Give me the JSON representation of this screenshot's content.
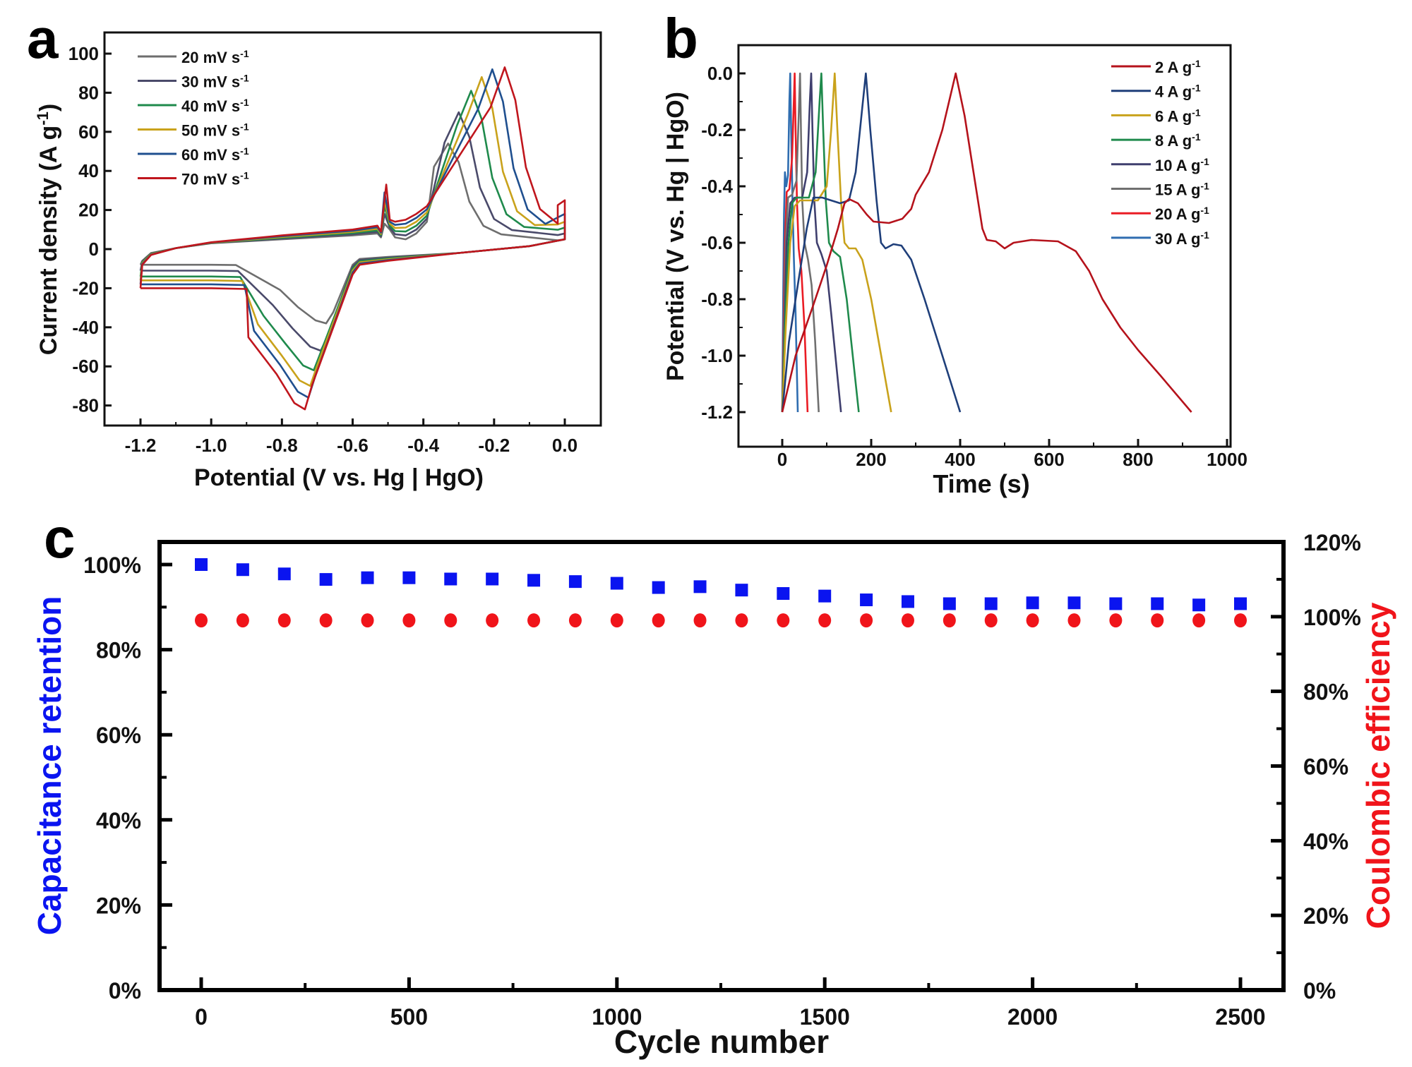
{
  "figure": {
    "panels": [
      "a",
      "b",
      "c"
    ]
  },
  "chart_data": [
    {
      "id": "a",
      "type": "line",
      "panel_label": "a",
      "title": "",
      "xlabel": "Potential (V vs. Hg | HgO)",
      "ylabel": "Current density (A g-1)",
      "ylabel_parts": {
        "main": "Current density (A g",
        "sup": "-1",
        "end": ")"
      },
      "xlim": [
        -1.3,
        0.1
      ],
      "ylim": [
        -90,
        110
      ],
      "xticks": [
        -1.2,
        -1.0,
        -0.8,
        -0.6,
        -0.4,
        -0.2,
        0.0
      ],
      "xtick_labels": [
        "-1.2",
        "-1.0",
        "-0.8",
        "-0.6",
        "-0.4",
        "-0.2",
        "0.0"
      ],
      "yticks": [
        -80,
        -60,
        -40,
        -20,
        0,
        20,
        40,
        60,
        80,
        100
      ],
      "ytick_labels": [
        "-80",
        "-60",
        "-40",
        "-20",
        "0",
        "20",
        "40",
        "60",
        "80",
        "100"
      ],
      "grid": false,
      "legend_position": "top-left",
      "series": [
        {
          "name": "20 mV s-1",
          "label": "20 mV s",
          "sup": "-1",
          "color": "#6e6e6e",
          "anodic_peak": [
            -0.33,
            54
          ],
          "cathodic_peak": [
            -0.675,
            -38
          ],
          "side_peak": [
            -0.51,
            13
          ],
          "upper_end": 5,
          "lower_start": -8,
          "plateau_neg": -8
        },
        {
          "name": "30 mV s-1",
          "label": "30 mV s",
          "sup": "-1",
          "color": "#4a4a6a",
          "anodic_peak": [
            -0.3,
            70
          ],
          "cathodic_peak": [
            -0.69,
            -52
          ],
          "side_peak": [
            -0.51,
            18
          ],
          "upper_end": 8,
          "lower_start": -11,
          "plateau_neg": -11
        },
        {
          "name": "40 mV s-1",
          "label": "40 mV s",
          "sup": "-1",
          "color": "#1f8a4c",
          "anodic_peak": [
            -0.265,
            81
          ],
          "cathodic_peak": [
            -0.71,
            -62
          ],
          "side_peak": [
            -0.51,
            22
          ],
          "upper_end": 11,
          "lower_start": -14,
          "plateau_neg": -14
        },
        {
          "name": "50 mV s-1",
          "label": "50 mV s",
          "sup": "-1",
          "color": "#c9a21b",
          "anodic_peak": [
            -0.235,
            88
          ],
          "cathodic_peak": [
            -0.72,
            -70
          ],
          "side_peak": [
            -0.51,
            25
          ],
          "upper_end": 14,
          "lower_start": -16,
          "plateau_neg": -16
        },
        {
          "name": "60 mV s-1",
          "label": "60 mV s",
          "sup": "-1",
          "color": "#1f4f8f",
          "anodic_peak": [
            -0.205,
            92
          ],
          "cathodic_peak": [
            -0.725,
            -76
          ],
          "side_peak": [
            -0.51,
            29
          ],
          "upper_end": 18,
          "lower_start": -18,
          "plateau_neg": -18
        },
        {
          "name": "70 mV s-1",
          "label": "70 mV s",
          "sup": "-1",
          "color": "#c0161d",
          "anodic_peak": [
            -0.17,
            93
          ],
          "cathodic_peak": [
            -0.735,
            -82
          ],
          "side_peak": [
            -0.505,
            33
          ],
          "upper_end": 25,
          "lower_start": -20,
          "plateau_neg": -20
        }
      ]
    },
    {
      "id": "b",
      "type": "line",
      "panel_label": "b",
      "title": "",
      "xlabel": "Time (s)",
      "ylabel": "Potential (V vs. Hg | HgO)",
      "xlim": [
        -100,
        1000
      ],
      "ylim": [
        -1.3,
        0.1
      ],
      "xticks": [
        0,
        200,
        400,
        600,
        800,
        1000
      ],
      "xtick_labels": [
        "0",
        "200",
        "400",
        "600",
        "800",
        "1000"
      ],
      "yticks": [
        0.0,
        -0.2,
        -0.4,
        -0.6,
        -0.8,
        -1.0,
        -1.2
      ],
      "ytick_labels": [
        "0.0",
        "-0.2",
        "-0.4",
        "-0.6",
        "-0.8",
        "-1.0",
        "-1.2"
      ],
      "grid": false,
      "legend_position": "top-right",
      "series": [
        {
          "name": "2 A g-1",
          "label": "2 A g",
          "sup": "-1",
          "color": "#b5121b",
          "points": [
            [
              0,
              -1.2
            ],
            [
              30,
              -1.0
            ],
            [
              70,
              -0.82
            ],
            [
              100,
              -0.68
            ],
            [
              125,
              -0.55
            ],
            [
              140,
              -0.46
            ],
            [
              150,
              -0.445
            ],
            [
              170,
              -0.46
            ],
            [
              190,
              -0.5
            ],
            [
              205,
              -0.525
            ],
            [
              240,
              -0.53
            ],
            [
              270,
              -0.515
            ],
            [
              290,
              -0.48
            ],
            [
              300,
              -0.43
            ],
            [
              330,
              -0.35
            ],
            [
              360,
              -0.2
            ],
            [
              390,
              0.0
            ],
            [
              410,
              -0.15
            ],
            [
              430,
              -0.35
            ],
            [
              450,
              -0.55
            ],
            [
              460,
              -0.59
            ],
            [
              480,
              -0.595
            ],
            [
              500,
              -0.62
            ],
            [
              520,
              -0.6
            ],
            [
              560,
              -0.59
            ],
            [
              620,
              -0.595
            ],
            [
              660,
              -0.63
            ],
            [
              690,
              -0.7
            ],
            [
              720,
              -0.8
            ],
            [
              760,
              -0.9
            ],
            [
              800,
              -0.98
            ],
            [
              850,
              -1.07
            ],
            [
              920,
              -1.2
            ]
          ]
        },
        {
          "name": "4 A g-1",
          "label": "4 A g",
          "sup": "-1",
          "color": "#1f3f7a",
          "points": [
            [
              0,
              -1.2
            ],
            [
              15,
              -0.95
            ],
            [
              35,
              -0.75
            ],
            [
              55,
              -0.55
            ],
            [
              70,
              -0.44
            ],
            [
              90,
              -0.44
            ],
            [
              130,
              -0.46
            ],
            [
              150,
              -0.45
            ],
            [
              165,
              -0.35
            ],
            [
              180,
              -0.12
            ],
            [
              188,
              0.0
            ],
            [
              198,
              -0.2
            ],
            [
              212,
              -0.45
            ],
            [
              222,
              -0.6
            ],
            [
              232,
              -0.62
            ],
            [
              250,
              -0.605
            ],
            [
              268,
              -0.61
            ],
            [
              290,
              -0.66
            ],
            [
              320,
              -0.8
            ],
            [
              360,
              -1.0
            ],
            [
              400,
              -1.2
            ]
          ]
        },
        {
          "name": "6 A g-1",
          "label": "6 A g",
          "sup": "-1",
          "color": "#c9a21b",
          "points": [
            [
              0,
              -1.2
            ],
            [
              8,
              -0.9
            ],
            [
              18,
              -0.6
            ],
            [
              28,
              -0.47
            ],
            [
              40,
              -0.45
            ],
            [
              80,
              -0.45
            ],
            [
              100,
              -0.4
            ],
            [
              110,
              -0.2
            ],
            [
              118,
              0.0
            ],
            [
              124,
              -0.2
            ],
            [
              132,
              -0.45
            ],
            [
              140,
              -0.6
            ],
            [
              150,
              -0.62
            ],
            [
              165,
              -0.62
            ],
            [
              180,
              -0.66
            ],
            [
              200,
              -0.8
            ],
            [
              245,
              -1.2
            ]
          ]
        },
        {
          "name": "8 A g-1",
          "label": "8 A g",
          "sup": "-1",
          "color": "#1f8a4c",
          "points": [
            [
              0,
              -1.2
            ],
            [
              6,
              -0.9
            ],
            [
              14,
              -0.6
            ],
            [
              22,
              -0.46
            ],
            [
              32,
              -0.44
            ],
            [
              60,
              -0.44
            ],
            [
              75,
              -0.35
            ],
            [
              84,
              -0.1
            ],
            [
              88,
              0.0
            ],
            [
              92,
              -0.2
            ],
            [
              98,
              -0.45
            ],
            [
              105,
              -0.6
            ],
            [
              115,
              -0.63
            ],
            [
              130,
              -0.65
            ],
            [
              145,
              -0.8
            ],
            [
              172,
              -1.2
            ]
          ]
        },
        {
          "name": "10 A g-1",
          "label": "10 A g",
          "sup": "-1",
          "color": "#3f3f6e",
          "points": [
            [
              0,
              -1.2
            ],
            [
              5,
              -0.9
            ],
            [
              10,
              -0.6
            ],
            [
              18,
              -0.46
            ],
            [
              28,
              -0.44
            ],
            [
              45,
              -0.44
            ],
            [
              56,
              -0.35
            ],
            [
              62,
              -0.1
            ],
            [
              65,
              0.0
            ],
            [
              68,
              -0.2
            ],
            [
              72,
              -0.45
            ],
            [
              78,
              -0.6
            ],
            [
              88,
              -0.64
            ],
            [
              100,
              -0.7
            ],
            [
              110,
              -0.85
            ],
            [
              132,
              -1.2
            ]
          ]
        },
        {
          "name": "15 A g-1",
          "label": "15 A g",
          "sup": "-1",
          "color": "#707070",
          "points": [
            [
              0,
              -1.2
            ],
            [
              4,
              -0.9
            ],
            [
              8,
              -0.6
            ],
            [
              13,
              -0.44
            ],
            [
              22,
              -0.43
            ],
            [
              32,
              -0.38
            ],
            [
              37,
              -0.15
            ],
            [
              40,
              0.0
            ],
            [
              42,
              -0.2
            ],
            [
              45,
              -0.45
            ],
            [
              50,
              -0.6
            ],
            [
              58,
              -0.66
            ],
            [
              66,
              -0.75
            ],
            [
              74,
              -0.95
            ],
            [
              82,
              -1.2
            ]
          ]
        },
        {
          "name": "20 A g-1",
          "label": "20 A g",
          "sup": "-1",
          "color": "#ea1c24",
          "points": [
            [
              0,
              -1.2
            ],
            [
              3,
              -0.9
            ],
            [
              6,
              -0.6
            ],
            [
              10,
              -0.42
            ],
            [
              16,
              -0.41
            ],
            [
              22,
              -0.3
            ],
            [
              26,
              -0.1
            ],
            [
              28,
              0.0
            ],
            [
              30,
              -0.2
            ],
            [
              33,
              -0.45
            ],
            [
              37,
              -0.62
            ],
            [
              43,
              -0.7
            ],
            [
              50,
              -0.9
            ],
            [
              57,
              -1.2
            ]
          ]
        },
        {
          "name": "30 A g-1",
          "label": "30 A g",
          "sup": "-1",
          "color": "#2f6db0",
          "points": [
            [
              0,
              -1.2
            ],
            [
              2,
              -0.8
            ],
            [
              4,
              -0.5
            ],
            [
              6,
              -0.35
            ],
            [
              9,
              -0.4
            ],
            [
              13,
              -0.36
            ],
            [
              16,
              -0.1
            ],
            [
              18,
              0.0
            ],
            [
              20,
              -0.2
            ],
            [
              23,
              -0.45
            ],
            [
              26,
              -0.65
            ],
            [
              30,
              -0.85
            ],
            [
              35,
              -1.2
            ]
          ]
        }
      ]
    },
    {
      "id": "c",
      "type": "scatter",
      "panel_label": "c",
      "title": "",
      "xlabel": "Cycle number",
      "ylabel_left": "Capacitance retention",
      "ylabel_right": "Coulombic efficiency",
      "xlim": [
        -120,
        2620
      ],
      "ylim_left": [
        0,
        105
      ],
      "ylim_right": [
        0,
        120
      ],
      "xticks": [
        0,
        500,
        1000,
        1500,
        2000,
        2500
      ],
      "xtick_labels": [
        "0",
        "500",
        "1000",
        "1500",
        "2000",
        "2500"
      ],
      "yticks_left": [
        0,
        20,
        40,
        60,
        80,
        100
      ],
      "ytick_labels_left": [
        "0%",
        "20%",
        "40%",
        "60%",
        "80%",
        "100%"
      ],
      "yticks_right": [
        0,
        20,
        40,
        60,
        80,
        100,
        120
      ],
      "ytick_labels_right": [
        "0%",
        "20%",
        "40%",
        "60%",
        "80%",
        "100%",
        "120%"
      ],
      "grid": false,
      "legend_position": "none",
      "x": [
        0,
        100,
        200,
        300,
        400,
        500,
        600,
        700,
        800,
        900,
        1000,
        1100,
        1200,
        1300,
        1400,
        1500,
        1600,
        1700,
        1800,
        1900,
        2000,
        2100,
        2200,
        2300,
        2400,
        2500
      ],
      "series": [
        {
          "name": "Capacitance retention",
          "axis": "left",
          "marker": "square",
          "color": "#0a14f0",
          "values": [
            100.0,
            98.8,
            97.8,
            96.5,
            96.9,
            96.9,
            96.6,
            96.6,
            96.3,
            96.0,
            95.6,
            94.6,
            94.8,
            94.0,
            93.2,
            92.6,
            91.7,
            91.3,
            90.8,
            90.8,
            91.0,
            91.0,
            90.8,
            90.8,
            90.5,
            90.8
          ]
        },
        {
          "name": "Coulombic efficiency",
          "axis": "right",
          "marker": "circle",
          "color": "#f0141a",
          "values": [
            99,
            99,
            99,
            99,
            99,
            99,
            99,
            99,
            99,
            99,
            99,
            99,
            99,
            99,
            99,
            99,
            99,
            99,
            99,
            99,
            99,
            99,
            99,
            99,
            99,
            99
          ]
        }
      ]
    }
  ]
}
